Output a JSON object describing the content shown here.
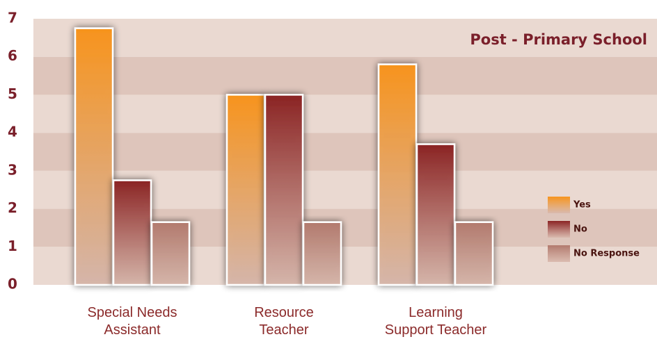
{
  "chart_data": {
    "type": "bar",
    "title": "Post - Primary School",
    "categories": [
      "Special Needs\nAssistant",
      "Resource\nTeacher",
      "Learning\nSupport Teacher"
    ],
    "series": [
      {
        "name": "Yes",
        "color": "#f7941d",
        "values": [
          6.75,
          5,
          5.8
        ]
      },
      {
        "name": "No",
        "color": "#8b2424",
        "values": [
          2.75,
          5,
          3.7
        ]
      },
      {
        "name": "No Response",
        "color": "#b27a6e",
        "values": [
          1.65,
          1.65,
          1.65
        ]
      }
    ],
    "ylim": [
      0,
      7
    ],
    "yticks": [
      0,
      1,
      2,
      3,
      4,
      5,
      6,
      7
    ],
    "grid": true,
    "legend": "lower right"
  }
}
